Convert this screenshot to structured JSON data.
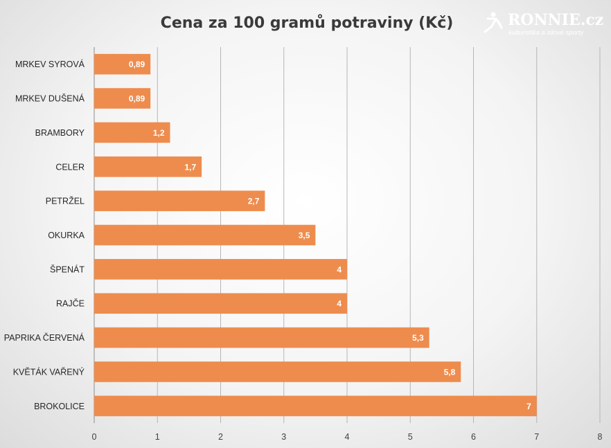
{
  "chart_data": {
    "type": "bar",
    "orientation": "horizontal",
    "title": "Cena za 100 gramů potraviny (Kč)",
    "categories": [
      "MRKEV SYROVÁ",
      "MRKEV DUŠENÁ",
      "BRAMBORY",
      "CELER",
      "PETRŽEL",
      "OKURKA",
      "ŠPENÁT",
      "RAJČE",
      "PAPRIKA ČERVENÁ",
      "KVĚTÁK VAŘENÝ",
      "BROKOLICE"
    ],
    "values": [
      0.89,
      0.89,
      1.2,
      1.7,
      2.7,
      3.5,
      4,
      4,
      5.3,
      5.8,
      7
    ],
    "data_labels": [
      "0,89",
      "0,89",
      "1,2",
      "1,7",
      "2,7",
      "3,5",
      "4",
      "4",
      "5,3",
      "5,8",
      "7"
    ],
    "xticks": [
      "0",
      "1",
      "2",
      "3",
      "4",
      "5",
      "6",
      "7",
      "8"
    ],
    "xlim": [
      0,
      8
    ],
    "grid": true,
    "bar_color": "#ee8c4e"
  },
  "logo": {
    "name": "RONNIE.cz",
    "tagline": "kulturistika a silové sporty"
  }
}
